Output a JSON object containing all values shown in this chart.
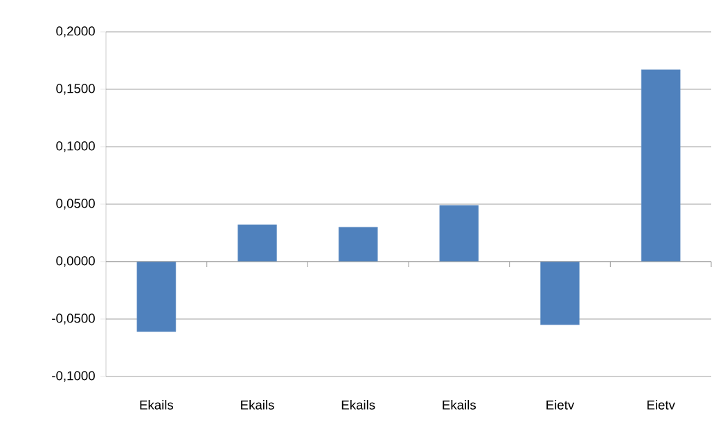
{
  "chart_data": {
    "type": "bar",
    "categories": [
      "Ekails",
      "Ekails",
      "Ekails",
      "Ekails",
      "Eietv",
      "Eietv"
    ],
    "values": [
      -0.061,
      0.032,
      0.03,
      0.049,
      -0.055,
      0.167
    ],
    "color": "#4f81bd",
    "ylim": [
      -0.1,
      0.2
    ],
    "yticks": [
      {
        "value": -0.1,
        "label": "-0,1000"
      },
      {
        "value": -0.05,
        "label": "-0,0500"
      },
      {
        "value": 0,
        "label": "0,0000"
      },
      {
        "value": 0.05,
        "label": "0,0500"
      },
      {
        "value": 0.1,
        "label": "0,1000"
      },
      {
        "value": 0.15,
        "label": "0,1500"
      },
      {
        "value": 0.2,
        "label": "0,2000"
      }
    ],
    "grid": "y"
  }
}
